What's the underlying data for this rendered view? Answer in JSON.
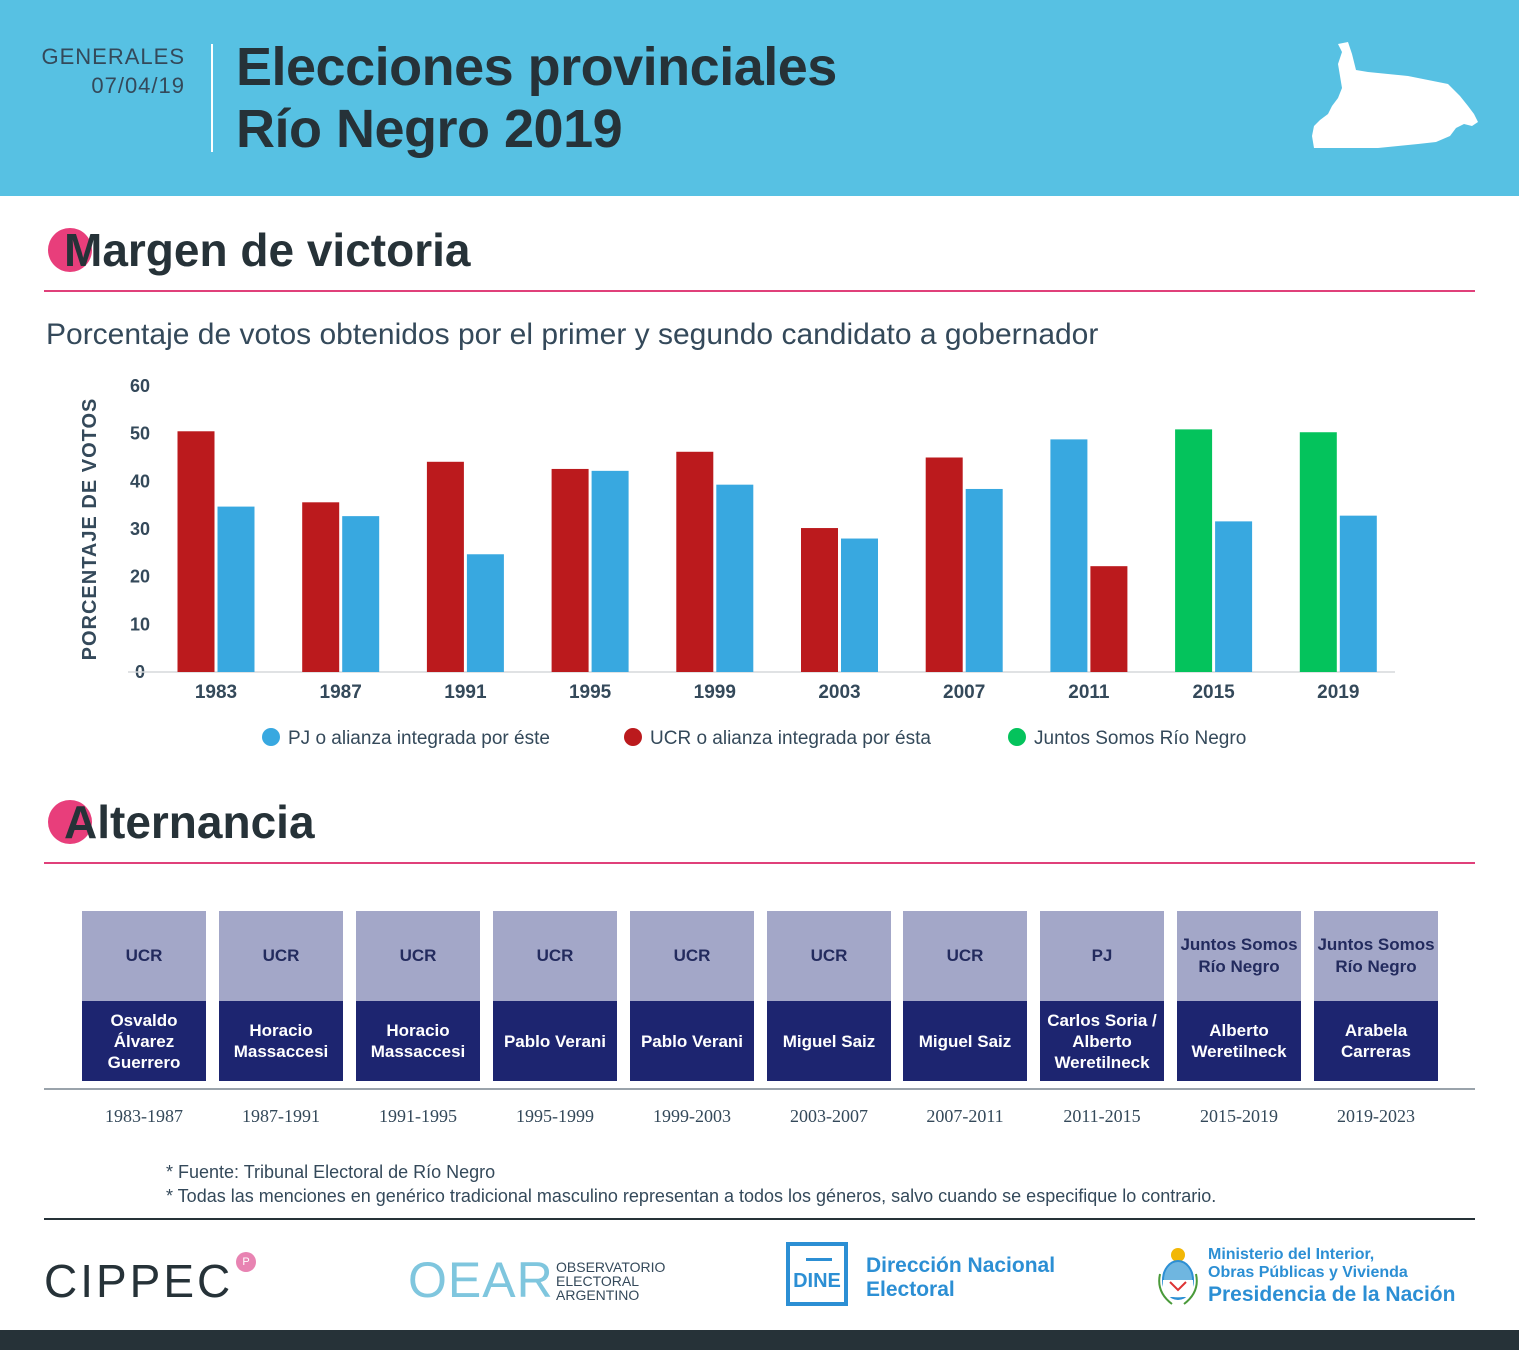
{
  "header": {
    "kicker_line1": "GENERALES",
    "kicker_line2": "07/04/19",
    "title_line1": "Elecciones provinciales",
    "title_line2": "Río Negro 2019"
  },
  "sections": {
    "margin_title": "Margen de victoria",
    "alternation_title": "Alternancia"
  },
  "colors": {
    "header_bg": "#57c1e3",
    "accent_pink": "#e83e7b",
    "pj": "#38a8e0",
    "ucr": "#bb1a1d",
    "jsrn": "#04c35c",
    "party_box": "#a3a7c8",
    "governor_box": "#1d2570"
  },
  "chart_data": {
    "type": "bar",
    "title": "Porcentaje de votos obtenidos por el primer y segundo candidato a gobernador",
    "ylabel": "PORCENTAJE DE VOTOS",
    "xlabel": "",
    "ylim": [
      0,
      60
    ],
    "yticks": [
      0,
      10,
      20,
      30,
      40,
      50,
      60
    ],
    "categories": [
      "1983",
      "1987",
      "1991",
      "1995",
      "1999",
      "2003",
      "2007",
      "2011",
      "2015",
      "2019"
    ],
    "first": {
      "values": [
        50.5,
        35.6,
        44.1,
        42.6,
        46.2,
        30.2,
        45.0,
        48.8,
        50.9,
        50.3
      ],
      "parties": [
        "UCR",
        "UCR",
        "UCR",
        "UCR",
        "UCR",
        "UCR",
        "UCR",
        "PJ",
        "JSRN",
        "JSRN"
      ]
    },
    "second": {
      "values": [
        34.7,
        32.7,
        24.7,
        42.2,
        39.3,
        28.0,
        38.4,
        22.2,
        31.6,
        32.8
      ],
      "parties": [
        "PJ",
        "PJ",
        "PJ",
        "PJ",
        "PJ",
        "PJ",
        "PJ",
        "UCR",
        "PJ",
        "PJ"
      ]
    },
    "legend": [
      {
        "key": "PJ",
        "label": "PJ o alianza integrada por éste"
      },
      {
        "key": "UCR",
        "label": "UCR o alianza integrada por ésta"
      },
      {
        "key": "JSRN",
        "label": "Juntos Somos Río Negro"
      }
    ]
  },
  "alternancia": [
    {
      "party": "UCR",
      "governor": "Osvaldo Álvarez Guerrero",
      "period": "1983-1987"
    },
    {
      "party": "UCR",
      "governor": "Horacio Massaccesi",
      "period": "1987-1991"
    },
    {
      "party": "UCR",
      "governor": "Horacio Massaccesi",
      "period": "1991-1995"
    },
    {
      "party": "UCR",
      "governor": "Pablo Verani",
      "period": "1995-1999"
    },
    {
      "party": "UCR",
      "governor": "Pablo Verani",
      "period": "1999-2003"
    },
    {
      "party": "UCR",
      "governor": "Miguel Saiz",
      "period": "2003-2007"
    },
    {
      "party": "UCR",
      "governor": "Miguel Saiz",
      "period": "2007-2011"
    },
    {
      "party": "PJ",
      "governor": "Carlos Soria / Alberto Weretilneck",
      "period": "2011-2015"
    },
    {
      "party": "Juntos Somos Río Negro",
      "governor": "Alberto Weretilneck",
      "period": "2015-2019"
    },
    {
      "party": "Juntos Somos Río Negro",
      "governor": "Arabela Carreras",
      "period": "2019-2023"
    }
  ],
  "notes": {
    "source": "* Fuente: Tribunal Electoral de Río Negro",
    "gender": "* Todas las menciones en genérico tradicional masculino representan a todos los géneros, salvo cuando se especifique lo contrario."
  },
  "logos": {
    "cippec": "CIPPEC",
    "oear_mark": "OEAR",
    "oear_line1": "OBSERVATORIO",
    "oear_line2": "ELECTORAL",
    "oear_line3": "ARGENTINO",
    "dine_mark": "DINE",
    "dine_line1": "Dirección Nacional",
    "dine_line2": "Electoral",
    "ministry_line1": "Ministerio del Interior,",
    "ministry_line2": "Obras Públicas y Vivienda",
    "ministry_line3": "Presidencia de la Nación"
  }
}
